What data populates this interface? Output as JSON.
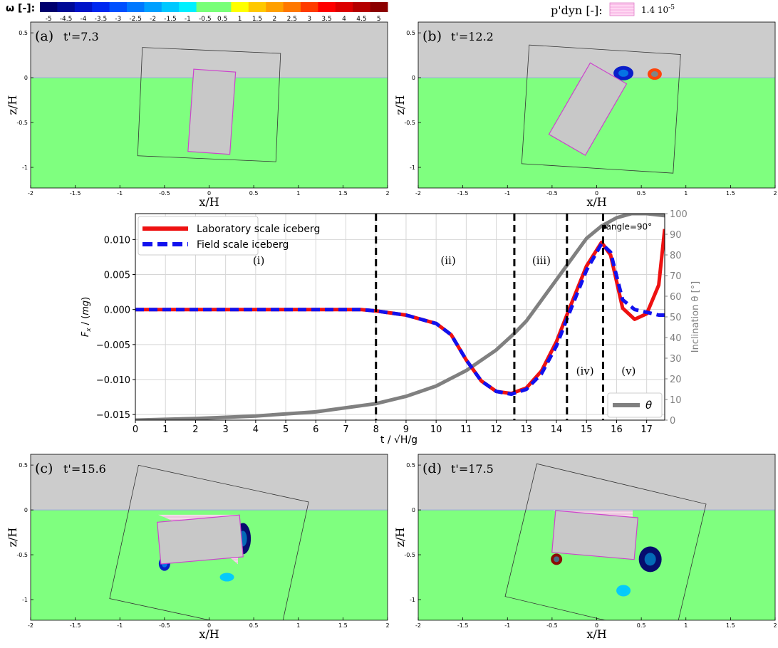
{
  "colorbar": {
    "label": "ω [-]:",
    "ticks": [
      "-5",
      "-4.5",
      "-4",
      "-3.5",
      "-3",
      "-2.5",
      "-2",
      "-1.5",
      "-1",
      "-0.5",
      "0.5",
      "1",
      "1.5",
      "2",
      "2.5",
      "3",
      "3.5",
      "4",
      "4.5",
      "5"
    ],
    "colors": [
      "#00006e",
      "#000a96",
      "#0014c8",
      "#0028f0",
      "#0050ff",
      "#0078ff",
      "#00a0ff",
      "#00c8ff",
      "#00f0ff",
      "#78ff78",
      "#78ff78",
      "#ffff00",
      "#ffc800",
      "#ffa000",
      "#ff7800",
      "#ff3c00",
      "#ff0000",
      "#dc0000",
      "#b40000",
      "#8c0000"
    ]
  },
  "pdyn_legend": {
    "label": "p'dyn [-]:",
    "value": "1.4 10",
    "exponent": "-5"
  },
  "colors": {
    "air": "#cccccc",
    "water": "#7fff7f",
    "iceberg": "#c8c8c8",
    "outline": "#cc44cc",
    "lab": "#ee1111",
    "field": "#1111ee",
    "theta": "#808080"
  },
  "panels": [
    {
      "tag": "(a)",
      "time": "t'=7.3",
      "angle": 4,
      "xlabel": "x/H",
      "ylabel": "z/H",
      "xticks": [
        "-2",
        "-1.5",
        "-1",
        "-0.5",
        "0",
        "0.5",
        "1",
        "1.5",
        "2"
      ],
      "yticks": [
        "0.5",
        "0",
        "-0.5",
        "-1"
      ]
    },
    {
      "tag": "(b)",
      "time": "t'=12.2",
      "angle": 30,
      "xlabel": "x/H",
      "ylabel": "z/H",
      "xticks": [
        "-2",
        "-1.5",
        "-1",
        "-0.5",
        "0",
        "0.5",
        "1",
        "1.5",
        "2"
      ],
      "yticks": [
        "0.5",
        "0",
        "-0.5",
        "-1"
      ]
    },
    {
      "tag": "(c)",
      "time": "t'=15.6",
      "angle": 85,
      "xlabel": "x/H",
      "ylabel": "z/H",
      "xticks": [
        "-2",
        "-1.5",
        "-1",
        "-0.5",
        "0",
        "0.5",
        "1",
        "1.5",
        "2"
      ],
      "yticks": [
        "0.5",
        "0",
        "-0.5",
        "-1"
      ]
    },
    {
      "tag": "(d)",
      "time": "t'=17.5",
      "angle": 95,
      "xlabel": "x/H",
      "ylabel": "z/H",
      "xticks": [
        "-2",
        "-1.5",
        "-1",
        "-0.5",
        "0",
        "0.5",
        "1",
        "1.5",
        "2"
      ],
      "yticks": [
        "0.5",
        "0",
        "-0.5",
        "-1"
      ]
    }
  ],
  "chart_data": {
    "type": "line",
    "xlabel": "t / √H/g",
    "ylabel": "F_x / (mg)",
    "y2label": "Inclination θ [°]",
    "xlim": [
      0,
      17.6
    ],
    "ylim": [
      -0.0158,
      0.0137
    ],
    "y2lim": [
      0,
      100
    ],
    "xticks": [
      "0",
      "1",
      "2",
      "3",
      "4",
      "5",
      "6",
      "7",
      "8",
      "9",
      "10",
      "11",
      "12",
      "13",
      "14",
      "15",
      "16",
      "17"
    ],
    "yticks": [
      "-0.015",
      "-0.010",
      "-0.005",
      "0.000",
      "0.005",
      "0.010"
    ],
    "y2ticks": [
      "0",
      "10",
      "20",
      "30",
      "40",
      "50",
      "60",
      "70",
      "80",
      "90",
      "100"
    ],
    "series": [
      {
        "name": "Laboratory scale iceberg",
        "x": [
          0,
          2,
          4,
          6,
          7.5,
          8,
          9,
          10,
          10.5,
          11,
          11.5,
          12,
          12.5,
          13,
          13.5,
          14,
          14.4,
          15,
          15.5,
          15.8,
          16.2,
          16.6,
          17,
          17.4,
          17.6
        ],
        "y": [
          0,
          0,
          0,
          0,
          0,
          -0.0002,
          -0.0008,
          -0.002,
          -0.0036,
          -0.0072,
          -0.0102,
          -0.0117,
          -0.012,
          -0.0112,
          -0.0088,
          -0.0046,
          -0.0002,
          0.0062,
          0.0096,
          0.0078,
          0.0002,
          -0.0014,
          -0.0006,
          0.0035,
          0.0115
        ]
      },
      {
        "name": "Field scale iceberg",
        "x": [
          0,
          2,
          4,
          6,
          7.5,
          8,
          9,
          10,
          10.5,
          11,
          11.5,
          12,
          12.5,
          13,
          13.5,
          14,
          14.4,
          15,
          15.5,
          15.8,
          16.2,
          16.6,
          17,
          17.4,
          17.6
        ],
        "y": [
          0,
          0,
          0,
          0,
          0,
          -0.0002,
          -0.0008,
          -0.002,
          -0.0036,
          -0.0072,
          -0.0102,
          -0.0117,
          -0.0121,
          -0.0114,
          -0.0092,
          -0.0052,
          -0.0008,
          0.0056,
          0.0094,
          0.0082,
          0.0014,
          0.0,
          -0.0004,
          -0.0008,
          -0.0008
        ]
      },
      {
        "name": "θ",
        "axis": "right",
        "x": [
          0,
          2,
          4,
          6,
          8,
          9,
          10,
          11,
          12,
          12.6,
          13,
          13.5,
          14,
          14.5,
          15,
          15.5,
          16,
          16.5,
          17,
          17.6
        ],
        "y": [
          0,
          0.8,
          2,
          4,
          8,
          11.5,
          16.5,
          24,
          34,
          42,
          48,
          58,
          68,
          78,
          88,
          94,
          98,
          100,
          100,
          99
        ]
      }
    ],
    "vlines": [
      8,
      12.6,
      14.35,
      15.55
    ],
    "regions": [
      {
        "label": "(i)",
        "x": 4.1,
        "y": 0.0065
      },
      {
        "label": "(ii)",
        "x": 10.4,
        "y": 0.0065
      },
      {
        "label": "(iii)",
        "x": 13.5,
        "y": 0.0065
      },
      {
        "label": "(iv)",
        "x": 14.95,
        "y": -0.0093
      },
      {
        "label": "(v)",
        "x": 16.4,
        "y": -0.0093
      }
    ],
    "annotation": {
      "text": "angle=90°",
      "x": 15.6,
      "y": 0.0114
    },
    "legend_position": "top-left",
    "theta_legend_position": "bottom-right",
    "grid": true
  }
}
